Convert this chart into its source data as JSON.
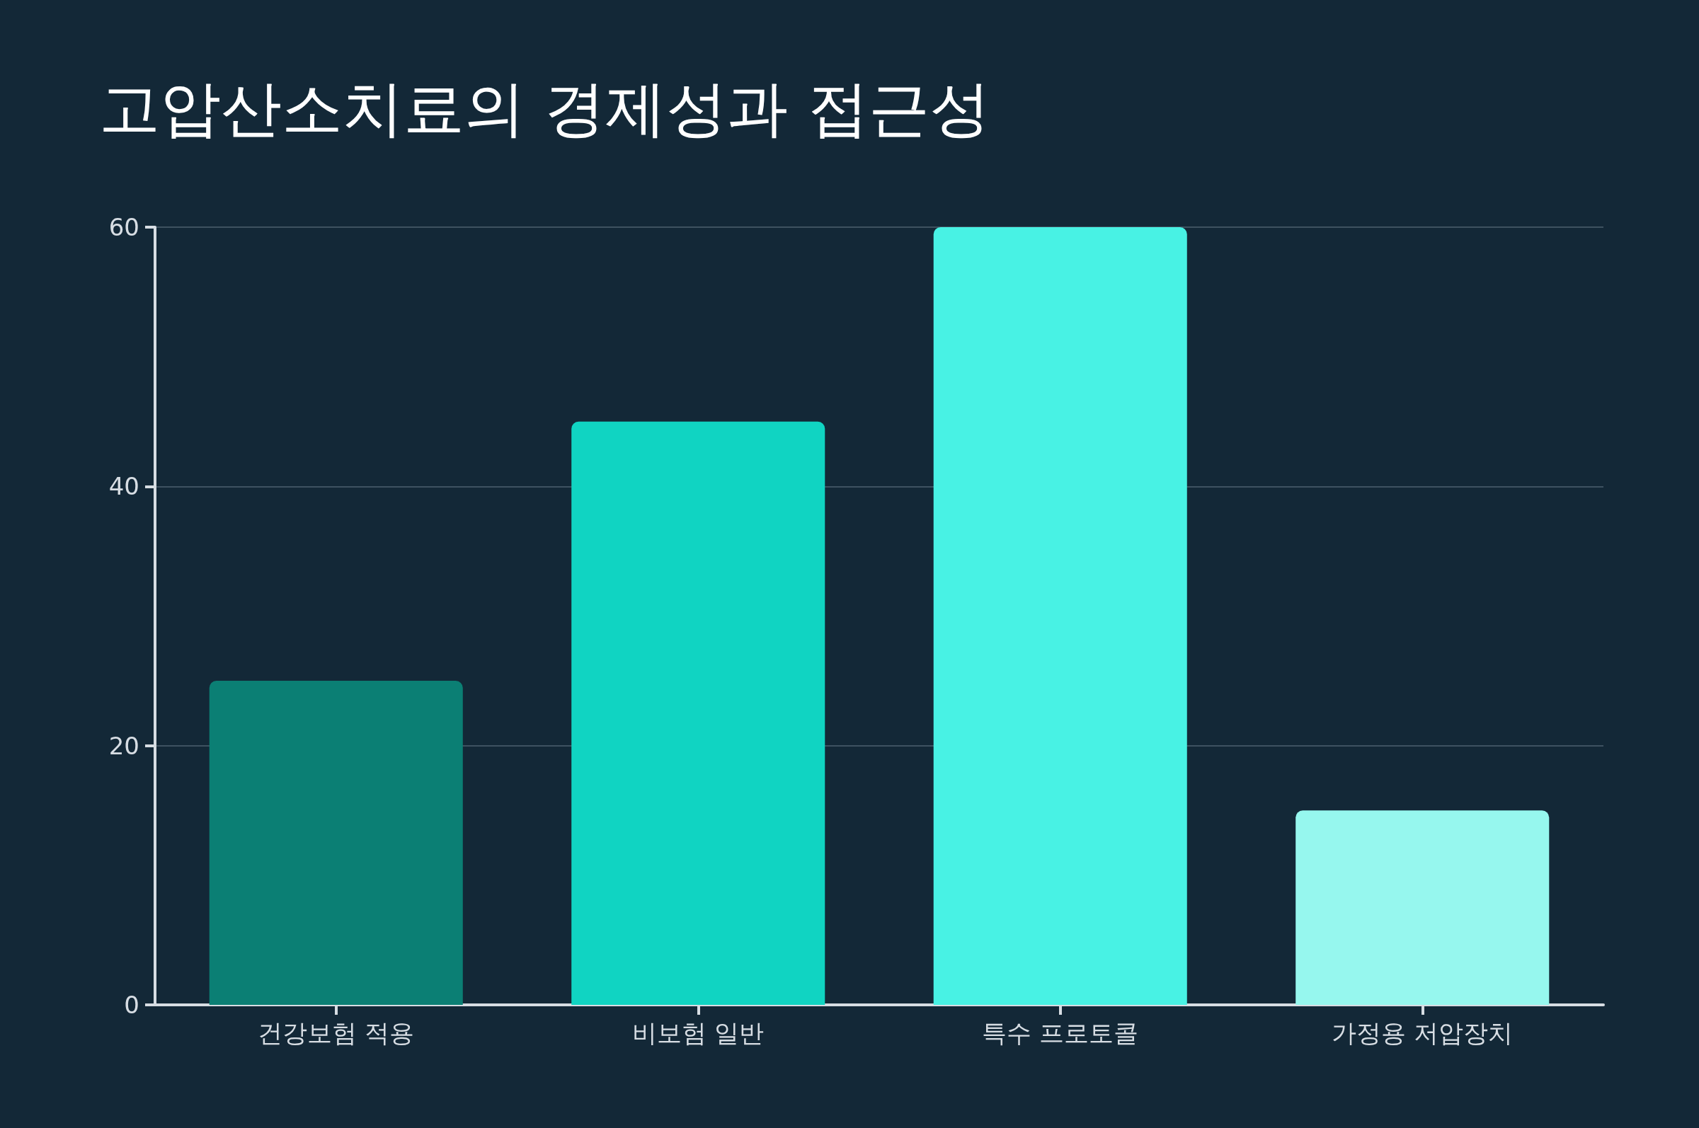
{
  "chart_data": {
    "type": "bar",
    "title": "고압산소치료의 경제성과 접근성",
    "categories": [
      "건강보험 적용",
      "비보험 일반",
      "특수 프로토콜",
      "가정용 저압장치"
    ],
    "values": [
      25,
      45,
      60,
      15
    ],
    "colors": [
      "#0b7f74",
      "#10d4c2",
      "#48f2e4",
      "#96f7ee"
    ],
    "ylim": [
      0,
      60
    ],
    "yticks": [
      0,
      20,
      40,
      60
    ],
    "grid": "y"
  }
}
